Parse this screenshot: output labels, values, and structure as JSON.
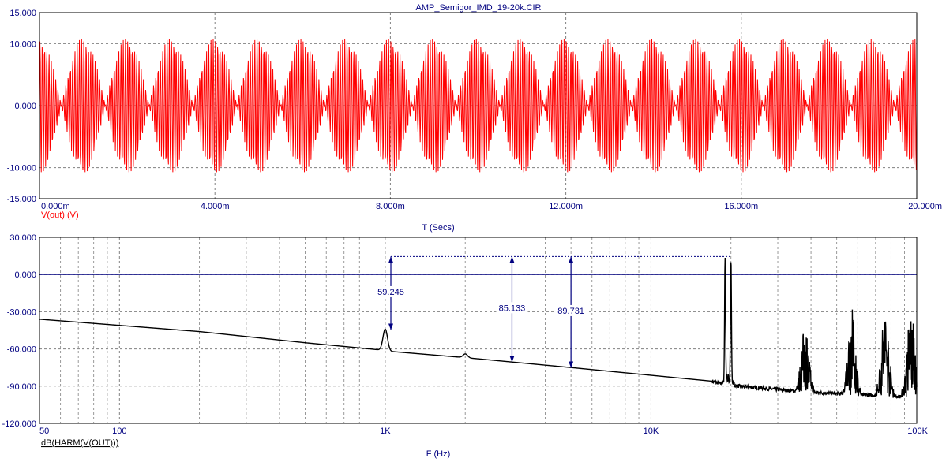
{
  "window": {
    "title": "AMP_Semigor_IMD_19-20k.CIR"
  },
  "colors": {
    "trace_time": "#ff0000",
    "trace_spectrum": "#000000",
    "axis_text": "#000080",
    "label_red": "#ff0000",
    "grid": "#808080",
    "cursor": "#000080"
  },
  "chart_data": [
    {
      "type": "line",
      "title": "AMP_Semigor_IMD_19-20k.CIR",
      "xlabel": "T (Secs)",
      "ylabel": "",
      "trace_label": "V(out) (V)",
      "x_unit": "s",
      "xlim": [
        0,
        0.02
      ],
      "ylim": [
        -15,
        15
      ],
      "x_ticks": [
        "0.000m",
        "4.000m",
        "8.000m",
        "12.000m",
        "16.000m",
        "20.000m"
      ],
      "y_ticks": [
        "15.000",
        "10.000",
        "0.000",
        "-10.000",
        "-15.000"
      ],
      "grid": true,
      "series": [
        {
          "name": "V(out) (V)",
          "signal": "two-tone sine 19 kHz + 20 kHz (1 kHz beat envelope)",
          "f1_hz": 19000,
          "f2_hz": 20000,
          "peak_amplitude": 11.0,
          "beat_periods_shown": 20
        }
      ]
    },
    {
      "type": "line",
      "xlabel": "F (Hz)",
      "ylabel": "",
      "trace_label": "dB(HARM(V(OUT)))",
      "x_scale": "log",
      "xlim": [
        50,
        100000
      ],
      "ylim": [
        -120,
        30
      ],
      "x_ticks": [
        "50",
        "100",
        "1K",
        "10K",
        "100K"
      ],
      "y_ticks": [
        "30.000",
        "0.000",
        "-30.000",
        "-60.000",
        "-90.000",
        "-120.000"
      ],
      "grid": true,
      "reference_line_y": 0,
      "series": [
        {
          "name": "dB(HARM(V(OUT)))",
          "noise_floor": {
            "x": [
              50,
              200,
              500,
              980,
              1050,
              2000,
              5000,
              17000,
              19000,
              40000,
              100000
            ],
            "y": [
              -36,
              -46,
              -55,
              -61,
              -62,
              -67,
              -75,
              -86,
              -89,
              -95,
              -99
            ]
          },
          "peaks": [
            {
              "x": 1000,
              "y": -44
            },
            {
              "x": 2000,
              "y": -64
            },
            {
              "x": 19000,
              "y": 14.5
            },
            {
              "x": 20000,
              "y": 14.5
            }
          ]
        }
      ],
      "measurements": [
        {
          "label": "59.245",
          "x": 1050,
          "value": 59.245,
          "top": 14.5,
          "bottom": -44.7
        },
        {
          "label": "85.133",
          "x": 3000,
          "value": 85.133,
          "top": 14.5,
          "bottom": -70.6
        },
        {
          "label": "89.731",
          "x": 5000,
          "value": 89.731,
          "top": 14.5,
          "bottom": -75.2
        }
      ]
    }
  ]
}
